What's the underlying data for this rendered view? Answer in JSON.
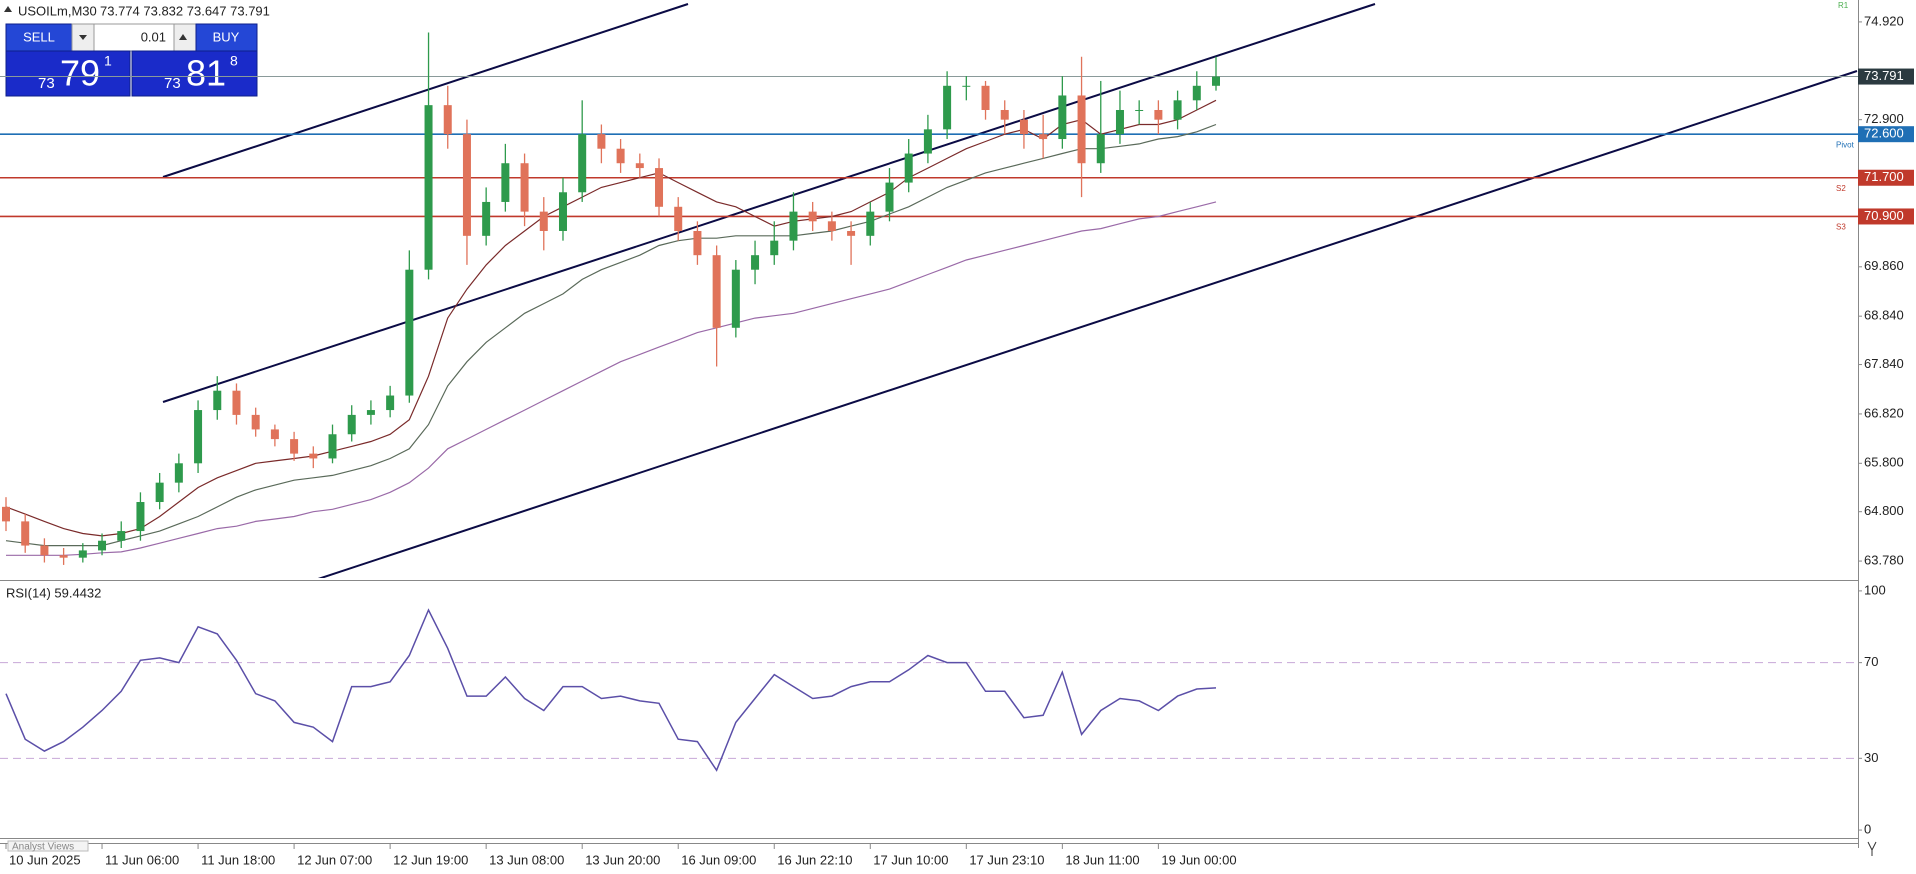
{
  "header": {
    "symbol": "USOILm,M30",
    "ohlc": "73.774 73.832 73.647 73.791"
  },
  "trade_panel": {
    "sell": "SELL",
    "buy": "BUY",
    "lot": "0.01",
    "sell_price": {
      "big": "73",
      "main": "79",
      "sup": "1"
    },
    "buy_price": {
      "big": "73",
      "main": "81",
      "sup": "8"
    }
  },
  "footer": "Analyst Views",
  "chart_data": [
    {
      "type": "candlestick",
      "categories": [
        "10 Jun 2025",
        null,
        null,
        null,
        null,
        "11 Jun 06:00",
        null,
        null,
        null,
        null,
        "11 Jun 18:00",
        null,
        null,
        null,
        null,
        "12 Jun 07:00",
        null,
        null,
        null,
        null,
        "12 Jun 19:00",
        null,
        null,
        null,
        null,
        "13 Jun 08:00",
        null,
        null,
        null,
        null,
        "13 Jun 20:00",
        null,
        null,
        null,
        null,
        "16 Jun 09:00",
        null,
        null,
        null,
        null,
        "16 Jun 22:10",
        null,
        null,
        null,
        null,
        "17 Jun 10:00",
        null,
        null,
        null,
        null,
        "17 Jun 23:10",
        null,
        null,
        null,
        null,
        "18 Jun 11:00",
        null,
        null,
        null,
        null,
        "19 Jun 00:00",
        null,
        null,
        null
      ],
      "open": [
        64.9,
        64.6,
        64.1,
        63.9,
        63.85,
        64.0,
        64.2,
        64.4,
        65.0,
        65.4,
        65.8,
        66.9,
        67.3,
        66.8,
        66.5,
        66.3,
        66.0,
        65.9,
        66.4,
        66.8,
        66.9,
        67.2,
        69.8,
        73.2,
        72.6,
        70.5,
        71.2,
        72.0,
        71.0,
        70.6,
        71.4,
        72.6,
        72.3,
        72.0,
        71.9,
        71.1,
        70.6,
        70.1,
        68.6,
        69.8,
        70.1,
        70.4,
        71.0,
        70.8,
        70.6,
        70.5,
        71.0,
        71.6,
        72.2,
        72.7,
        73.6,
        73.6,
        73.1,
        72.9,
        72.6,
        72.5,
        73.4,
        72.0,
        72.6,
        73.1,
        73.1,
        72.9,
        73.3,
        73.6
      ],
      "high": [
        65.1,
        64.75,
        64.25,
        64.05,
        64.15,
        64.35,
        64.6,
        65.2,
        65.6,
        66.0,
        67.1,
        67.6,
        67.45,
        66.95,
        66.6,
        66.45,
        66.15,
        66.6,
        67.0,
        67.1,
        67.4,
        70.2,
        74.7,
        73.6,
        72.9,
        71.5,
        72.4,
        72.2,
        71.3,
        71.7,
        73.3,
        72.8,
        72.5,
        72.2,
        72.1,
        71.3,
        70.8,
        70.3,
        70.0,
        70.4,
        70.8,
        71.4,
        71.2,
        71.0,
        70.8,
        71.2,
        71.9,
        72.5,
        73.0,
        73.9,
        73.8,
        73.7,
        73.3,
        73.1,
        73.0,
        73.8,
        74.2,
        73.7,
        73.5,
        73.3,
        73.3,
        73.5,
        73.9,
        74.2
      ],
      "low": [
        64.4,
        63.95,
        63.75,
        63.7,
        63.75,
        63.9,
        64.05,
        64.2,
        64.85,
        65.2,
        65.6,
        66.7,
        66.6,
        66.35,
        66.15,
        65.85,
        65.7,
        65.8,
        66.25,
        66.6,
        66.75,
        67.05,
        69.6,
        72.3,
        69.9,
        70.3,
        71.0,
        70.7,
        70.2,
        70.4,
        71.2,
        72.0,
        71.8,
        71.7,
        70.9,
        70.4,
        69.9,
        67.8,
        68.4,
        69.5,
        69.9,
        70.2,
        70.6,
        70.4,
        69.9,
        70.3,
        70.8,
        71.4,
        72.0,
        72.5,
        73.3,
        72.9,
        72.6,
        72.3,
        72.1,
        72.3,
        71.3,
        71.8,
        72.4,
        72.8,
        72.6,
        72.7,
        73.1,
        73.5
      ],
      "close": [
        64.6,
        64.1,
        63.9,
        63.85,
        64.0,
        64.2,
        64.4,
        65.0,
        65.4,
        65.8,
        66.9,
        67.3,
        66.8,
        66.5,
        66.3,
        66.0,
        65.9,
        66.4,
        66.8,
        66.9,
        67.2,
        69.8,
        73.2,
        72.6,
        70.5,
        71.2,
        72.0,
        71.0,
        70.6,
        71.4,
        72.6,
        72.3,
        72.0,
        71.9,
        71.1,
        70.6,
        70.1,
        68.6,
        69.8,
        70.1,
        70.4,
        71.0,
        70.8,
        70.6,
        70.5,
        71.0,
        71.6,
        72.2,
        72.7,
        73.6,
        73.6,
        73.1,
        72.9,
        72.6,
        72.5,
        73.4,
        72.0,
        72.6,
        73.1,
        73.1,
        72.9,
        73.3,
        73.6,
        73.79
      ],
      "up_color": "#2e9a4c",
      "down_color": "#e0735a",
      "series": [
        {
          "color": "#7a2a2a",
          "values": [
            64.9,
            64.75,
            64.6,
            64.45,
            64.35,
            64.3,
            64.35,
            64.45,
            64.7,
            65.0,
            65.3,
            65.5,
            65.65,
            65.8,
            65.85,
            65.9,
            65.95,
            66.05,
            66.15,
            66.25,
            66.4,
            66.7,
            67.6,
            68.8,
            69.4,
            69.9,
            70.3,
            70.6,
            70.9,
            71.1,
            71.3,
            71.5,
            71.6,
            71.7,
            71.8,
            71.6,
            71.4,
            71.2,
            71.1,
            70.9,
            70.7,
            70.8,
            70.85,
            70.9,
            71.0,
            71.2,
            71.4,
            71.7,
            71.9,
            72.1,
            72.3,
            72.45,
            72.6,
            72.7,
            72.5,
            72.8,
            72.9,
            72.6,
            72.7,
            72.8,
            72.8,
            72.9,
            73.1,
            73.3
          ]
        },
        {
          "color": "#5a6a5a",
          "values": [
            64.2,
            64.15,
            64.1,
            64.1,
            64.1,
            64.1,
            64.2,
            64.3,
            64.4,
            64.55,
            64.7,
            64.9,
            65.1,
            65.25,
            65.35,
            65.45,
            65.5,
            65.55,
            65.65,
            65.75,
            65.9,
            66.1,
            66.6,
            67.4,
            67.9,
            68.3,
            68.6,
            68.9,
            69.1,
            69.3,
            69.6,
            69.8,
            69.95,
            70.1,
            70.3,
            70.4,
            70.45,
            70.45,
            70.5,
            70.5,
            70.5,
            70.5,
            70.55,
            70.6,
            70.7,
            70.8,
            70.95,
            71.1,
            71.3,
            71.5,
            71.65,
            71.8,
            71.9,
            72.0,
            72.1,
            72.2,
            72.3,
            72.3,
            72.35,
            72.4,
            72.5,
            72.55,
            72.65,
            72.8
          ]
        },
        {
          "color": "#9a6aa8",
          "values": [
            63.9,
            63.9,
            63.9,
            63.9,
            63.92,
            63.95,
            63.97,
            64.05,
            64.15,
            64.25,
            64.35,
            64.45,
            64.5,
            64.6,
            64.65,
            64.7,
            64.8,
            64.85,
            64.95,
            65.05,
            65.2,
            65.4,
            65.7,
            66.1,
            66.3,
            66.5,
            66.7,
            66.9,
            67.1,
            67.3,
            67.5,
            67.7,
            67.9,
            68.05,
            68.2,
            68.35,
            68.5,
            68.6,
            68.7,
            68.8,
            68.85,
            68.9,
            69.0,
            69.1,
            69.2,
            69.3,
            69.4,
            69.55,
            69.7,
            69.85,
            70.0,
            70.1,
            70.2,
            70.3,
            70.4,
            70.5,
            70.6,
            70.65,
            70.75,
            70.85,
            70.9,
            71.0,
            71.1,
            71.2
          ]
        }
      ],
      "levels": [
        {
          "name": "Pivot",
          "value": 72.6,
          "label": "72.600",
          "color": "#1f6fb5"
        },
        {
          "name": "S2",
          "value": 71.7,
          "label": "71.700",
          "color": "#c0392b"
        },
        {
          "name": "S3",
          "value": 70.9,
          "label": "70.900",
          "color": "#c0392b"
        }
      ],
      "annotations": [
        "R1"
      ],
      "current_price": {
        "value": 73.791,
        "label": "73.791",
        "color": "#2b3a40"
      },
      "ylim": [
        63.43,
        75.29
      ],
      "yticks": [
        {
          "value": 74.92,
          "label": "74.920"
        },
        {
          "value": 72.9,
          "label": "72.900"
        },
        {
          "value": 69.86,
          "label": "69.860"
        },
        {
          "value": 68.84,
          "label": "68.840"
        },
        {
          "value": 67.84,
          "label": "67.840"
        },
        {
          "value": 66.82,
          "label": "66.820"
        },
        {
          "value": 65.8,
          "label": "65.800"
        },
        {
          "value": 64.8,
          "label": "64.800"
        },
        {
          "value": 63.78,
          "label": "63.780"
        }
      ]
    },
    {
      "type": "line",
      "title": "RSI(14) 59.4432",
      "series": [
        {
          "color": "#5b4fa8",
          "values": [
            57,
            38,
            33,
            37,
            43,
            50,
            58,
            71,
            72,
            70,
            85,
            82,
            71,
            57,
            54,
            45,
            43,
            37,
            60,
            60,
            62,
            73,
            92,
            76,
            56,
            56,
            64,
            55,
            50,
            60,
            60,
            55,
            56,
            54,
            53,
            38,
            37,
            25,
            45,
            55,
            65,
            60,
            55,
            56,
            60,
            62,
            62,
            67,
            73,
            70,
            70,
            58,
            58,
            47,
            48,
            66,
            40,
            50,
            55,
            54,
            50,
            56,
            59,
            59.44
          ]
        }
      ],
      "levels": [
        70,
        30
      ],
      "ylim": [
        -2.9,
        103.3
      ],
      "yticks": [
        100,
        70,
        30,
        0
      ]
    }
  ]
}
